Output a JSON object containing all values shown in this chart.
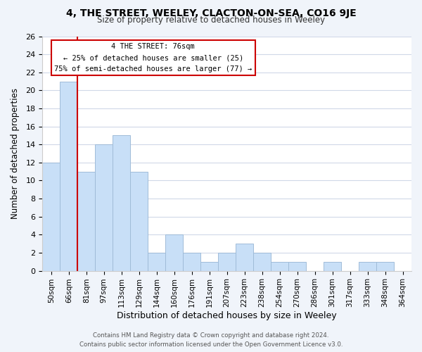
{
  "title": "4, THE STREET, WEELEY, CLACTON-ON-SEA, CO16 9JE",
  "subtitle": "Size of property relative to detached houses in Weeley",
  "xlabel": "Distribution of detached houses by size in Weeley",
  "ylabel": "Number of detached properties",
  "bin_labels": [
    "50sqm",
    "66sqm",
    "81sqm",
    "97sqm",
    "113sqm",
    "129sqm",
    "144sqm",
    "160sqm",
    "176sqm",
    "191sqm",
    "207sqm",
    "223sqm",
    "238sqm",
    "254sqm",
    "270sqm",
    "286sqm",
    "301sqm",
    "317sqm",
    "333sqm",
    "348sqm",
    "364sqm"
  ],
  "bar_heights": [
    12,
    21,
    11,
    14,
    15,
    11,
    2,
    4,
    2,
    1,
    2,
    3,
    2,
    1,
    1,
    0,
    1,
    0,
    1,
    1,
    0
  ],
  "bar_color": "#c8dff7",
  "bar_edge_color": "#a0bcd8",
  "grid_color": "#d0d8e8",
  "annotation_line1": "4 THE STREET: 76sqm",
  "annotation_line2": "← 25% of detached houses are smaller (25)",
  "annotation_line3": "75% of semi-detached houses are larger (77) →",
  "annotation_box_edge_color": "#cc0000",
  "property_line_color": "#cc0000",
  "ylim_max": 26,
  "yticks": [
    0,
    2,
    4,
    6,
    8,
    10,
    12,
    14,
    16,
    18,
    20,
    22,
    24,
    26
  ],
  "footer_line1": "Contains HM Land Registry data © Crown copyright and database right 2024.",
  "footer_line2": "Contains public sector information licensed under the Open Government Licence v3.0.",
  "background_color": "#f0f4fa",
  "plot_background_color": "#ffffff"
}
